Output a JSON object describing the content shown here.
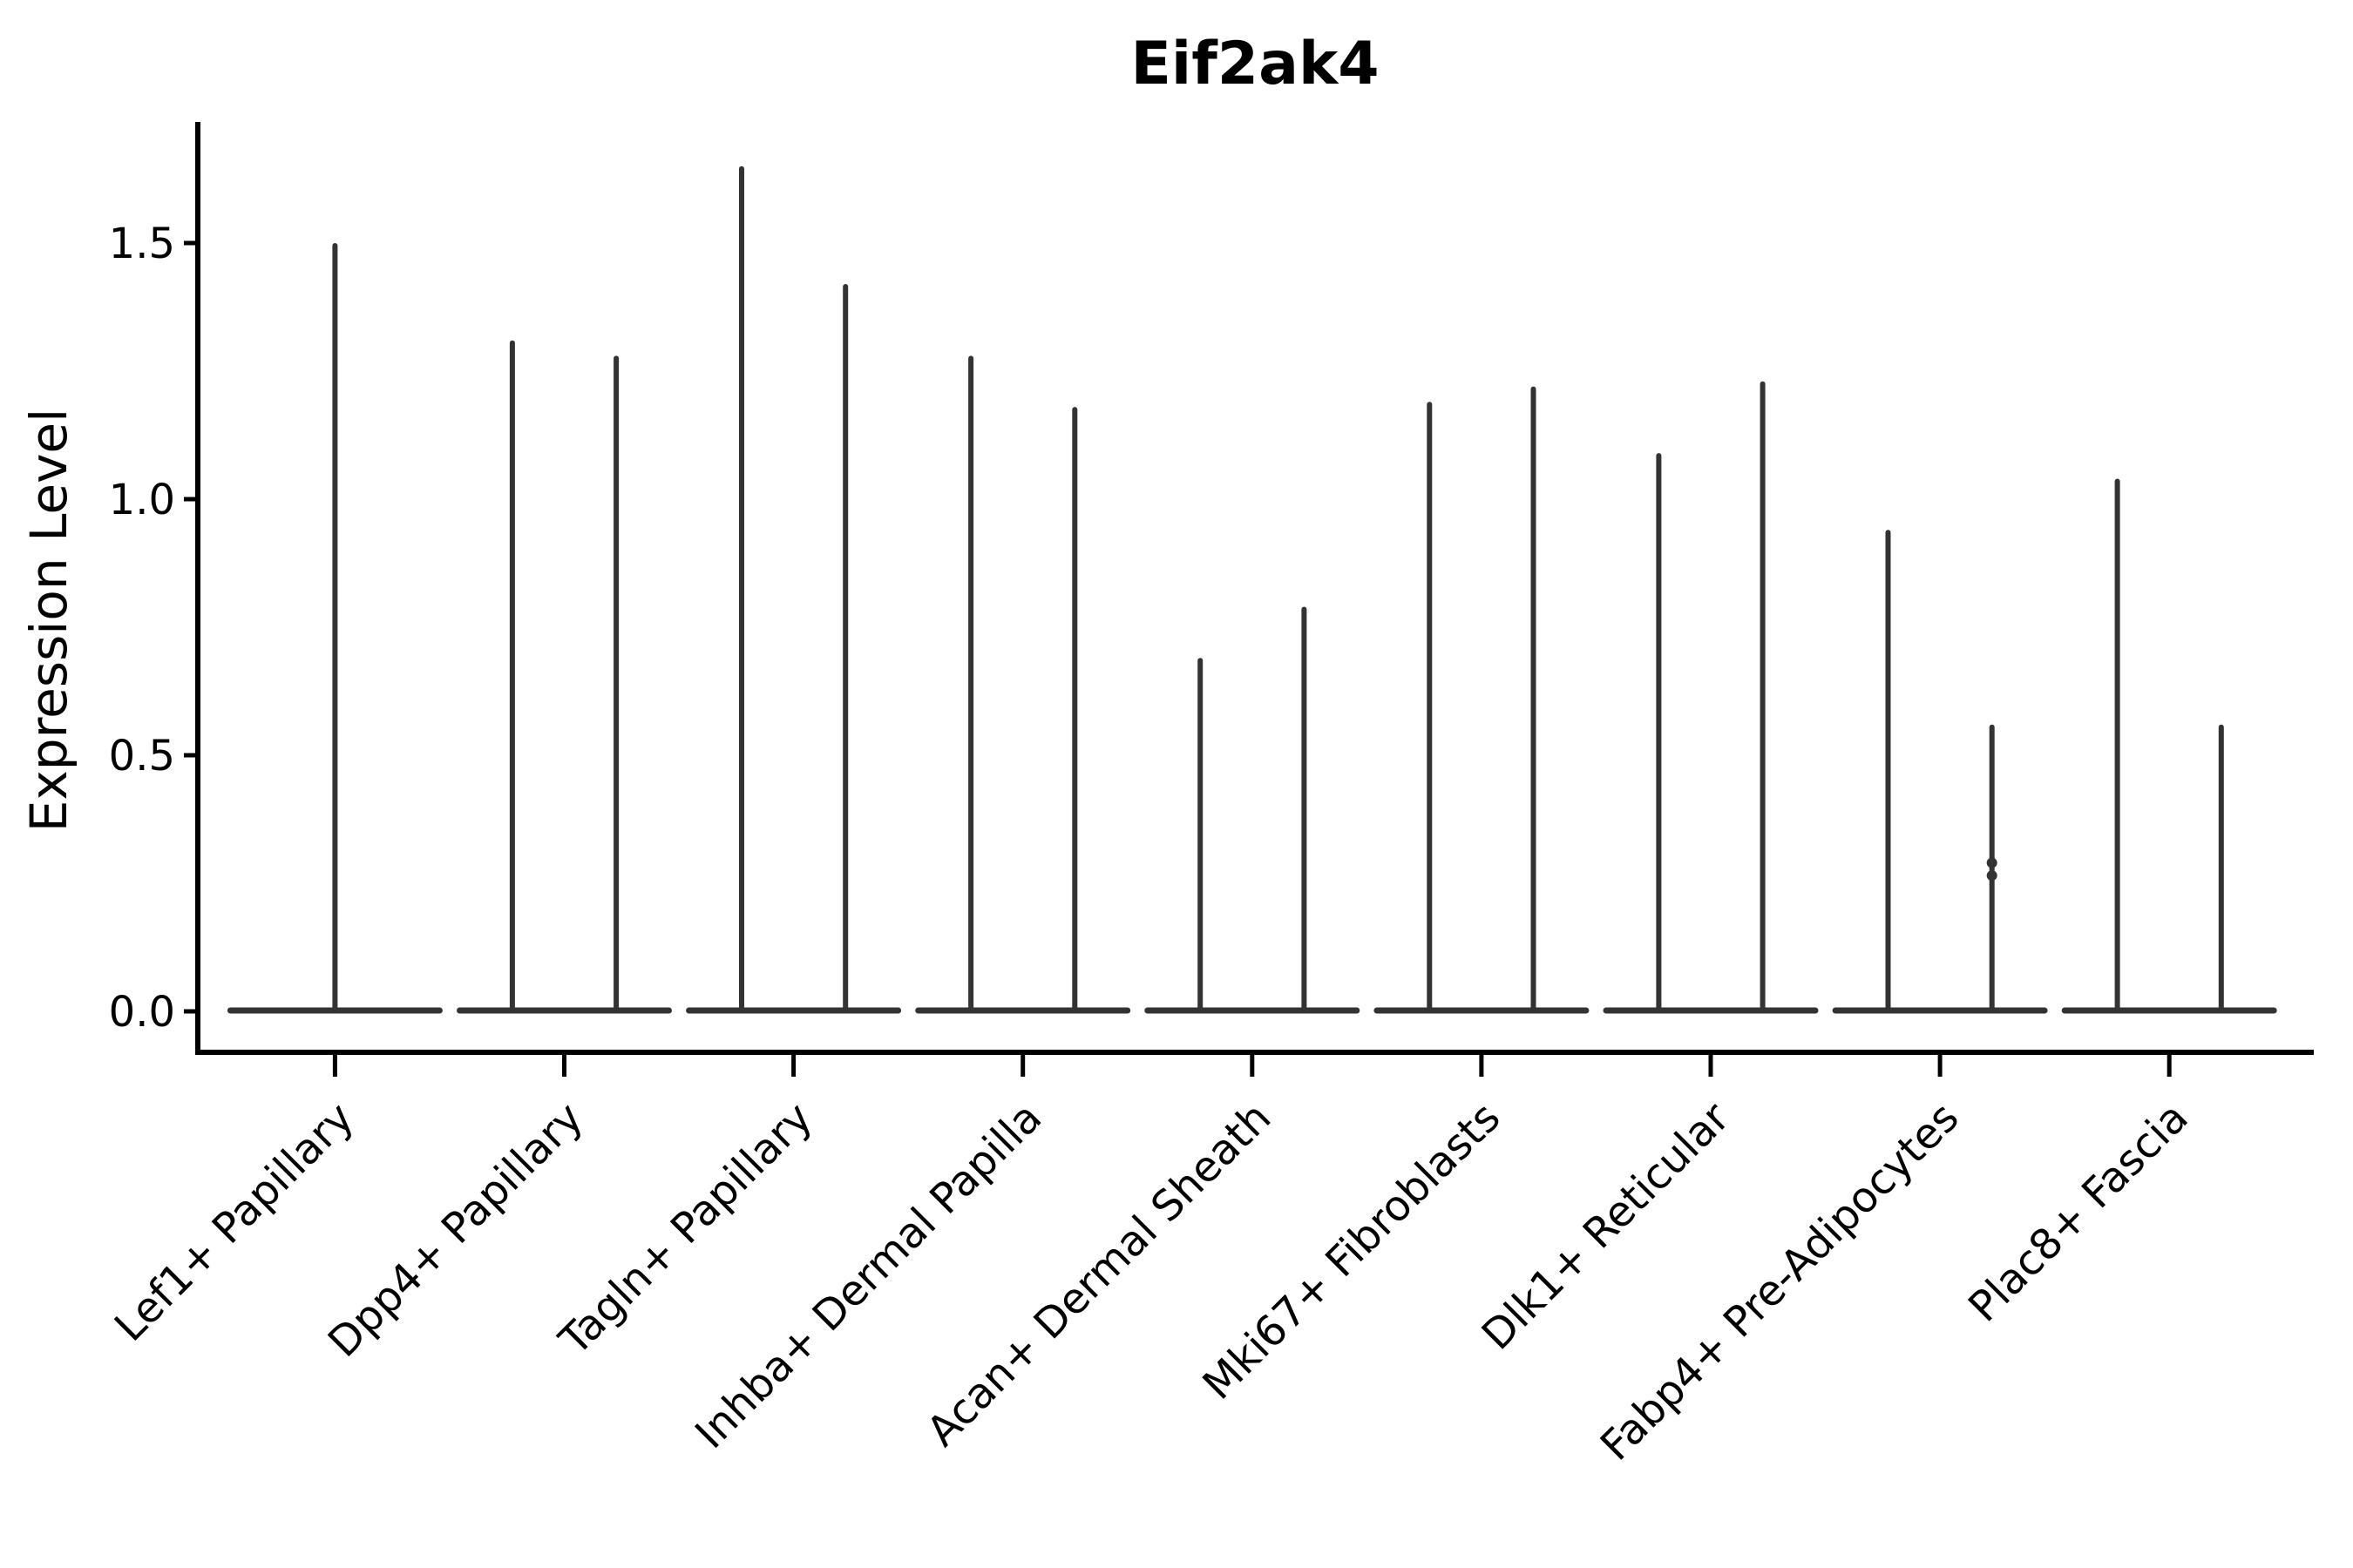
{
  "chart_data": {
    "type": "violin",
    "title": "Eif2ak4",
    "ylabel": "Expression Level",
    "xlabel": "",
    "ylim": [
      0,
      1.74
    ],
    "yticks": [
      "0.0",
      "0.5",
      "1.0",
      "1.5"
    ],
    "grid": false,
    "legend": "none",
    "distribution_note": "zero-inflated expression: each violin renders as a wide flat base at 0 with a thin central spike up to the maximum value",
    "categories": [
      "Lef1+ Papillary",
      "Dpp4+ Papillary",
      "Tagln+ Papillary",
      "Inhba+ Dermal Papilla",
      "Acan+ Dermal Sheath",
      "Mki67+ Fibroblasts",
      "Dlk1+ Reticular",
      "Fabp4+ Pre-Adipocytes",
      "Plac8+ Fascia"
    ],
    "violins": [
      {
        "category": "Lef1+ Papillary",
        "max_values": [
          1.5
        ]
      },
      {
        "category": "Dpp4+ Papillary",
        "max_values": [
          1.31,
          1.28
        ]
      },
      {
        "category": "Tagln+ Papillary",
        "max_values": [
          1.65,
          1.42
        ]
      },
      {
        "category": "Inhba+ Dermal Papilla",
        "max_values": [
          1.28,
          1.18
        ]
      },
      {
        "category": "Acan+ Dermal Sheath",
        "max_values": [
          0.69,
          0.79
        ]
      },
      {
        "category": "Mki67+ Fibroblasts",
        "max_values": [
          1.19,
          1.22
        ]
      },
      {
        "category": "Dlk1+ Reticular",
        "max_values": [
          1.09,
          1.23
        ]
      },
      {
        "category": "Fabp4+ Pre-Adipocytes",
        "max_values": [
          0.94,
          0.56
        ],
        "knots_on_second": [
          0.29,
          0.265
        ]
      },
      {
        "category": "Plac8+ Fascia",
        "max_values": [
          1.04,
          0.56
        ]
      }
    ],
    "colors": {
      "violin": "#333333",
      "axis": "#000000",
      "text": "#000000",
      "background": "#ffffff"
    }
  }
}
